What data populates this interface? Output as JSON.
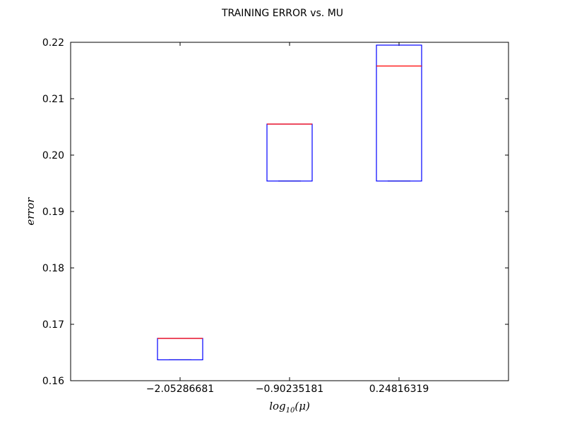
{
  "chart_data": {
    "type": "box",
    "title": "TRAINING ERROR vs. MU",
    "xlabel": "log10(μ)",
    "ylabel": "error",
    "categories": [
      "−2.05286681",
      "−0.90235181",
      "0.24816319"
    ],
    "ylim": [
      0.16,
      0.22
    ],
    "yticks": [
      0.16,
      0.17,
      0.18,
      0.19,
      0.2,
      0.21,
      0.22
    ],
    "ytick_labels": [
      "0.16",
      "0.17",
      "0.18",
      "0.19",
      "0.20",
      "0.21",
      "0.22"
    ],
    "boxes": [
      {
        "q1": 0.1637,
        "median": 0.1675,
        "q3": 0.1675,
        "whisker_low": 0.1637,
        "whisker_high": 0.1675
      },
      {
        "q1": 0.1954,
        "median": 0.2055,
        "q3": 0.2055,
        "whisker_low": 0.1954,
        "whisker_high": 0.2055
      },
      {
        "q1": 0.1954,
        "median": 0.2158,
        "q3": 0.2195,
        "whisker_low": 0.1954,
        "whisker_high": 0.2195
      }
    ],
    "grid": false,
    "colors": {
      "box": "#0000ff",
      "median": "#ff0000",
      "axes": "#000000"
    }
  }
}
